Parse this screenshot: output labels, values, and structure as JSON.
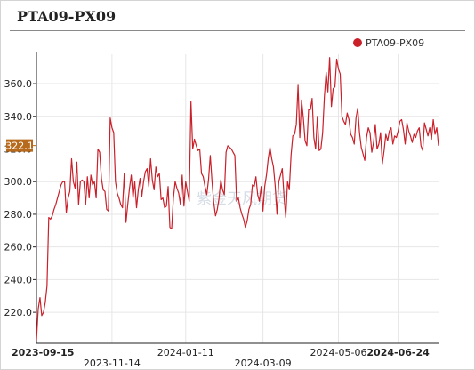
{
  "title": "PTA09-PX09",
  "colors": {
    "series": "#c9202a",
    "badge": "#b86a1c",
    "grid": "#e6e6e6",
    "axis": "#222222"
  },
  "watermark": "紫金天风期货",
  "chart_data": {
    "type": "line",
    "title": "PTA09-PX09",
    "xlabel": "",
    "ylabel": "",
    "ylim": [
      201,
      378
    ],
    "y_ticks": [
      220.0,
      240.0,
      260.0,
      280.0,
      300.0,
      320.0,
      340.0,
      360.0
    ],
    "y_tick_labels": [
      "220.0",
      "240.0",
      "260.0",
      "280.0",
      "300.0",
      "320.0",
      "340.0",
      "360.0"
    ],
    "x_ticks": [
      {
        "label": "2023-09-15",
        "pos": 0,
        "row": 0,
        "bold": true
      },
      {
        "label": "2023-11-14",
        "pos": 43,
        "row": 1,
        "bold": false
      },
      {
        "label": "2024-01-11",
        "pos": 85,
        "row": 0,
        "bold": false
      },
      {
        "label": "2024-03-09",
        "pos": 129,
        "row": 1,
        "bold": false
      },
      {
        "label": "2024-05-06",
        "pos": 172,
        "row": 0,
        "bold": false
      },
      {
        "label": "2024-06-24",
        "pos": 206,
        "row": 0,
        "bold": true
      }
    ],
    "legend": {
      "position": "top-right"
    },
    "last_value_label": "322.1",
    "series": [
      {
        "name": "PTA09-PX09",
        "values": [
          203,
          222,
          229,
          218,
          220,
          226,
          236,
          278,
          277,
          279,
          283,
          286,
          290,
          294,
          298,
          300,
          300,
          281,
          290,
          294,
          314,
          300,
          296,
          312,
          286,
          300,
          301,
          300,
          286,
          303,
          290,
          304,
          298,
          300,
          290,
          320,
          318,
          302,
          295,
          294,
          283,
          282,
          339,
          333,
          330,
          300,
          293,
          290,
          286,
          284,
          305,
          275,
          286,
          296,
          304,
          290,
          300,
          284,
          295,
          302,
          291,
          300,
          306,
          308,
          297,
          314,
          301,
          295,
          309,
          303,
          305,
          289,
          290,
          284,
          285,
          297,
          272,
          271,
          290,
          300,
          296,
          293,
          286,
          304,
          285,
          300,
          294,
          288,
          349,
          320,
          326,
          322,
          319,
          320,
          305,
          303,
          297,
          292,
          301,
          316,
          300,
          287,
          279,
          283,
          290,
          301,
          295,
          292,
          318,
          322,
          321,
          320,
          318,
          316,
          288,
          290,
          284,
          280,
          277,
          272,
          276,
          283,
          286,
          298,
          297,
          303,
          292,
          288,
          297,
          282,
          297,
          304,
          314,
          321,
          314,
          309,
          297,
          280,
          300,
          304,
          308,
          291,
          278,
          300,
          295,
          316,
          328,
          329,
          335,
          359,
          327,
          350,
          339,
          325,
          322,
          344,
          344,
          351,
          327,
          320,
          340,
          319,
          320,
          330,
          352,
          367,
          355,
          376,
          346,
          357,
          358,
          375,
          369,
          366,
          340,
          337,
          335,
          342,
          338,
          329,
          327,
          323,
          339,
          345,
          330,
          321,
          317,
          313,
          327,
          333,
          330,
          318,
          324,
          335,
          320,
          323,
          330,
          311,
          319,
          329,
          325,
          331,
          333,
          323,
          328,
          327,
          331,
          337,
          338,
          332,
          323,
          336,
          331,
          328,
          324,
          329,
          327,
          331,
          333,
          322,
          319,
          336,
          332,
          328,
          333,
          326,
          338,
          329,
          333,
          322
        ]
      }
    ]
  }
}
